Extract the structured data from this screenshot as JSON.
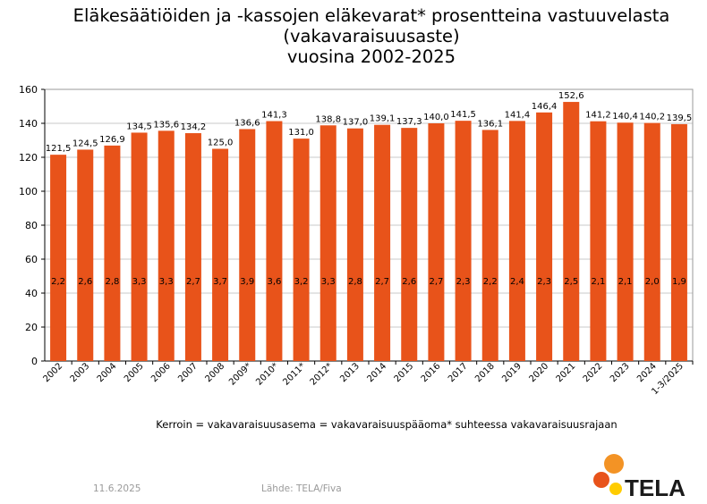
{
  "chart_data": {
    "type": "bar",
    "title_lines": [
      "Eläkesäätiöiden ja -kassojen eläkevarat* prosentteina vastuuvelasta",
      "(vakavaraisuusaste)",
      "vuosina 2002-2025"
    ],
    "categories": [
      "2002",
      "2003",
      "2004",
      "2005",
      "2006",
      "2007",
      "2008",
      "2009*",
      "2010*",
      "2011*",
      "2012*",
      "2013",
      "2014",
      "2015",
      "2016",
      "2017",
      "2018",
      "2019",
      "2020",
      "2021",
      "2022",
      "2023",
      "2024",
      "1-3/2025"
    ],
    "values": [
      121.5,
      124.5,
      126.9,
      134.5,
      135.6,
      134.2,
      125.0,
      136.6,
      141.3,
      131.0,
      138.8,
      137.0,
      139.1,
      137.3,
      140.0,
      141.5,
      136.1,
      141.4,
      146.4,
      152.6,
      141.2,
      140.4,
      140.2,
      139.5
    ],
    "value_labels": [
      "121,5",
      "124,5",
      "126,9",
      "134,5",
      "135,6",
      "134,2",
      "125,0",
      "136,6",
      "141,3",
      "131,0",
      "138,8",
      "137,0",
      "139,1",
      "137,3",
      "140,0",
      "141,5",
      "136,1",
      "141,4",
      "146,4",
      "152,6",
      "141,2",
      "140,4",
      "140,2",
      "139,5"
    ],
    "inner_labels": [
      "2,2",
      "2,6",
      "2,8",
      "3,3",
      "3,3",
      "2,7",
      "3,7",
      "3,9",
      "3,6",
      "3,2",
      "3,3",
      "2,8",
      "2,7",
      "2,6",
      "2,7",
      "2,3",
      "2,2",
      "2,4",
      "2,3",
      "2,5",
      "2,1",
      "2,1",
      "2,0",
      "1,9"
    ],
    "ylim": [
      0,
      160
    ],
    "yticks": [
      0,
      20,
      40,
      60,
      80,
      100,
      120,
      140,
      160
    ],
    "grid": true,
    "bar_color": "#E8531A",
    "grid_color": "#c8c8c8"
  },
  "footnote": "Kerroin = vakavaraisuusasema = vakavaraisuuspääoma* suhteessa vakavaraisuusrajaan",
  "date": "11.6.2025",
  "source": "Lähde: TELA/Fiva",
  "logo": {
    "text": "TELA",
    "colors": [
      "#F39325",
      "#E8531A",
      "#FFCC00"
    ]
  }
}
